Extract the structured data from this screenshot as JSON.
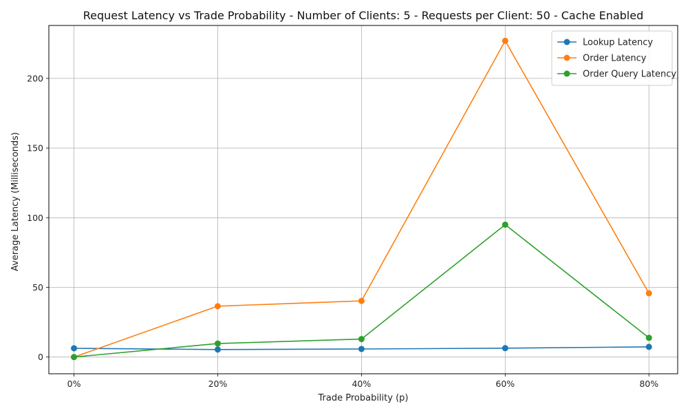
{
  "chart_data": {
    "type": "line",
    "title": "Request Latency vs Trade Probability - Number of Clients: 5 - Requests per Client: 50 - Cache Enabled",
    "xlabel": "Trade Probability (p)",
    "ylabel": "Average Latency (Milliseconds)",
    "categories": [
      "0%",
      "20%",
      "40%",
      "60%",
      "80%"
    ],
    "x": [
      0,
      20,
      40,
      60,
      80
    ],
    "xlim": [
      -3.5,
      84
    ],
    "ylim": [
      -12,
      238
    ],
    "yticks": [
      0,
      50,
      100,
      150,
      200
    ],
    "grid": true,
    "legend_position": "top-right",
    "series": [
      {
        "name": "Lookup Latency",
        "color": "#1f77b4",
        "values": [
          6.3,
          5.4,
          5.8,
          6.4,
          7.3
        ]
      },
      {
        "name": "Order Latency",
        "color": "#ff7f0e",
        "values": [
          0,
          36.5,
          40.3,
          227.0,
          45.8
        ]
      },
      {
        "name": "Order Query Latency",
        "color": "#2ca02c",
        "values": [
          0,
          9.7,
          12.9,
          95.0,
          13.8
        ]
      }
    ]
  }
}
